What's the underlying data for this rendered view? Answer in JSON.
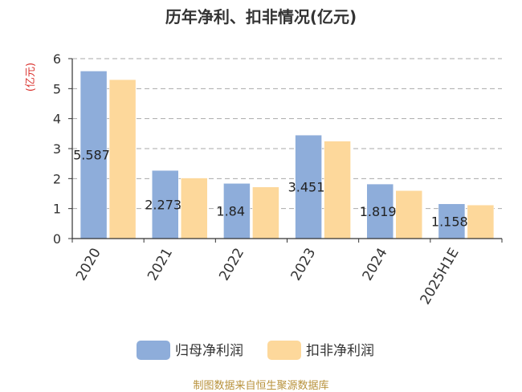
{
  "chart_data": {
    "type": "bar",
    "title": "历年净利、扣非情况(亿元)",
    "ylabel": "(亿元)",
    "xlabel": "",
    "categories": [
      "2020",
      "2021",
      "2022",
      "2023",
      "2024",
      "2025H1E"
    ],
    "series": [
      {
        "name": "归母净利润",
        "color": "#8eadda",
        "values": [
          5.587,
          2.273,
          1.84,
          3.451,
          1.819,
          1.158
        ],
        "labels": [
          "5.587",
          "2.273",
          "1.84",
          "3.451",
          "1.819",
          "1.158"
        ]
      },
      {
        "name": "扣非净利润",
        "color": "#fdd89b",
        "values": [
          5.3,
          2.02,
          1.72,
          3.25,
          1.6,
          1.12
        ]
      }
    ],
    "ylim": [
      0,
      6
    ],
    "yticks": [
      0,
      1,
      2,
      3,
      4,
      5,
      6
    ],
    "grid": true,
    "legend_position": "bottom"
  },
  "footer": {
    "source": "制图数据来自恒生聚源数据库"
  }
}
